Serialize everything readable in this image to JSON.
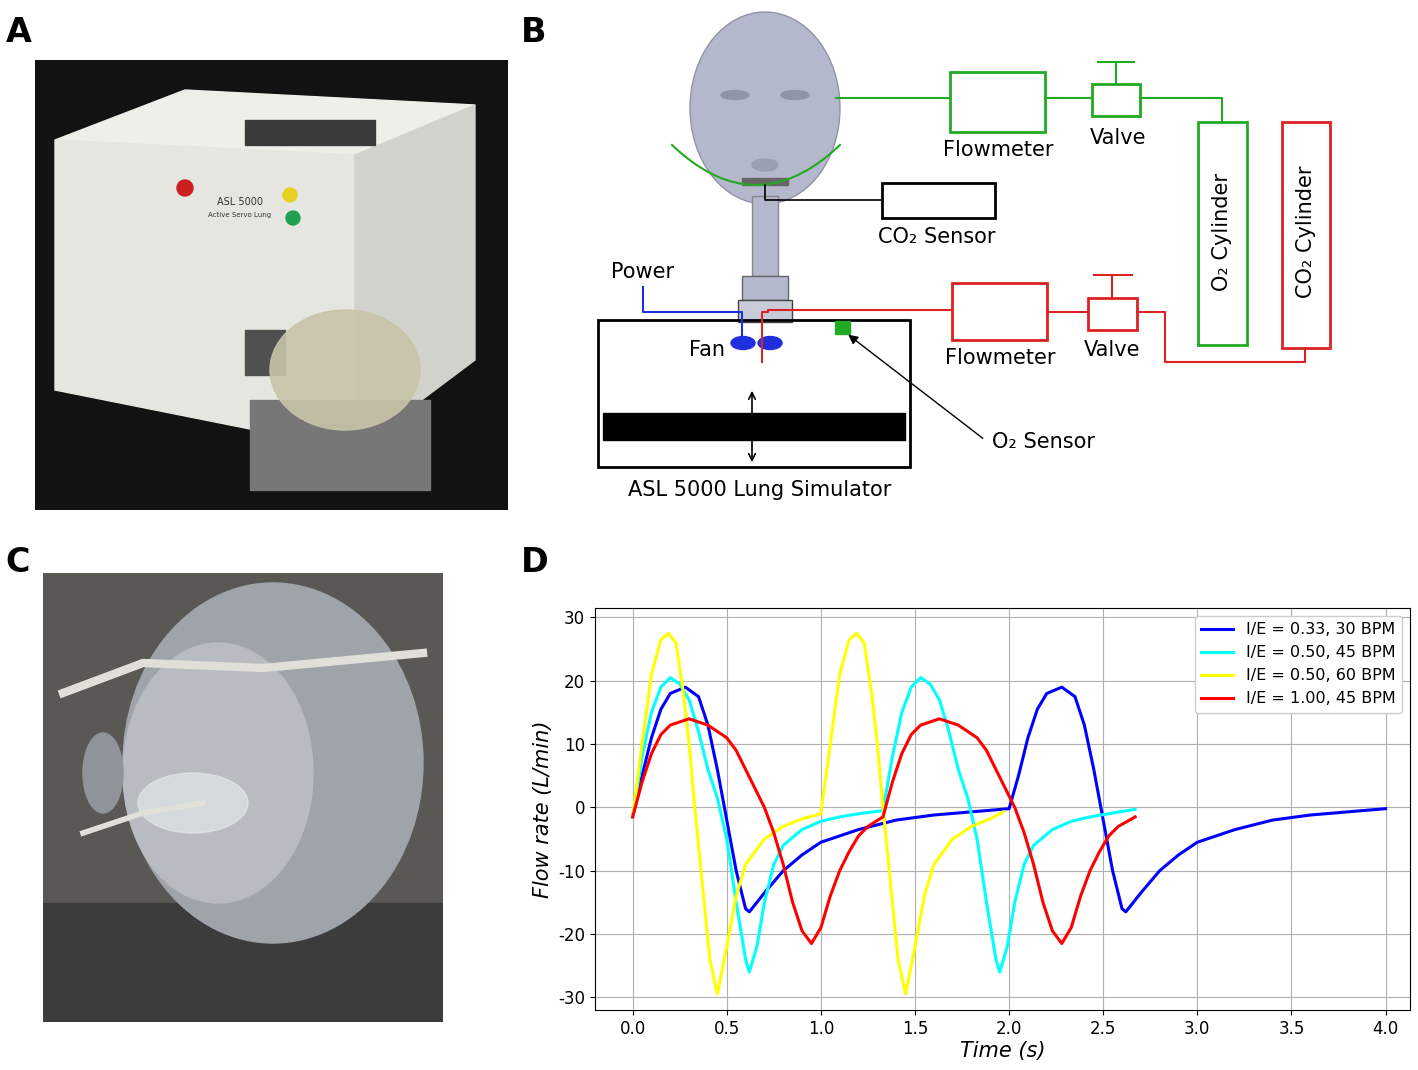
{
  "panel_labels": [
    "A",
    "B",
    "C",
    "D"
  ],
  "photo_A": {
    "device_text": [
      "ASL 5000",
      "Active Servo Lung"
    ]
  },
  "diagram": {
    "o2_branch": {
      "flowmeter": "Flowmeter",
      "valve": "Valve",
      "cylinder": "O₂ Cylinder"
    },
    "co2_branch": {
      "flowmeter": "Flowmeter",
      "valve": "Valve",
      "cylinder": "CO₂ Cylinder"
    },
    "co2_sensor": "CO₂ Sensor",
    "power": "Power",
    "fan": "Fan",
    "o2_sensor": "O₂ Sensor",
    "simulator": "ASL 5000 Lung Simulator"
  },
  "chart_data": {
    "type": "line",
    "xlabel": "Time (s)",
    "ylabel": "Flow rate (L/min)",
    "xlim": [
      -0.2,
      4.13
    ],
    "ylim": [
      -32,
      31.5
    ],
    "xticks": [
      {
        "value": 0,
        "label": "0.0"
      },
      0.5,
      {
        "value": 1,
        "label": "1.0"
      },
      1.5,
      {
        "value": 2,
        "label": "2.0"
      },
      2.5,
      {
        "value": 3,
        "label": "3.0"
      },
      3.5,
      {
        "value": 4,
        "label": "4.0"
      }
    ],
    "yticks": [
      -30,
      -20,
      -10,
      0,
      10,
      20,
      30
    ],
    "grid": true,
    "legend": "upper right",
    "series": [
      {
        "name": "I/E = 0.33, 30 BPM",
        "color": "#0000ff",
        "x": [
          0,
          0.05,
          0.1,
          0.15,
          0.2,
          0.28,
          0.35,
          0.4,
          0.45,
          0.5,
          0.55,
          0.6,
          0.62,
          0.7,
          0.8,
          0.9,
          1.0,
          1.2,
          1.4,
          1.6,
          1.8,
          2.0,
          2.05,
          2.1,
          2.15,
          2.2,
          2.28,
          2.35,
          2.4,
          2.45,
          2.5,
          2.55,
          2.6,
          2.62,
          2.7,
          2.8,
          2.9,
          3.0,
          3.2,
          3.4,
          3.6,
          3.8,
          4.0
        ],
        "values": [
          -1.5,
          5,
          11,
          15.5,
          18,
          19,
          17.5,
          13,
          6,
          -2,
          -10,
          -16,
          -16.5,
          -13.5,
          -10,
          -7.5,
          -5.5,
          -3.5,
          -2,
          -1.2,
          -0.7,
          -0.2,
          5,
          11,
          15.5,
          18,
          19,
          17.5,
          13,
          6,
          -2,
          -10,
          -16,
          -16.5,
          -13.5,
          -10,
          -7.5,
          -5.5,
          -3.5,
          -2,
          -1.2,
          -0.7,
          -0.2
        ]
      },
      {
        "name": "I/E = 0.50, 45 BPM",
        "color": "#00ffff",
        "x": [
          0,
          0.05,
          0.1,
          0.15,
          0.2,
          0.25,
          0.3,
          0.35,
          0.4,
          0.45,
          0.5,
          0.55,
          0.6,
          0.62,
          0.66,
          0.7,
          0.75,
          0.8,
          0.9,
          1.0,
          1.1,
          1.2,
          1.33,
          1.38,
          1.43,
          1.48,
          1.53,
          1.58,
          1.63,
          1.68,
          1.73,
          1.78,
          1.83,
          1.88,
          1.93,
          1.95,
          1.99,
          2.03,
          2.08,
          2.13,
          2.23,
          2.33,
          2.43,
          2.53,
          2.67
        ],
        "values": [
          -1.5,
          8,
          15,
          19,
          20.5,
          19.5,
          17,
          12,
          6,
          1.5,
          -5,
          -15,
          -24,
          -26,
          -22,
          -15,
          -9,
          -6,
          -3.5,
          -2.2,
          -1.5,
          -1,
          -0.5,
          8,
          15,
          19,
          20.5,
          19.5,
          17,
          12,
          6,
          1.5,
          -5,
          -15,
          -24,
          -26,
          -22,
          -15,
          -9,
          -6,
          -3.5,
          -2.2,
          -1.5,
          -1,
          -0.3
        ]
      },
      {
        "name": "I/E = 0.50, 60 BPM",
        "color": "#ffff00",
        "x": [
          0,
          0.05,
          0.1,
          0.15,
          0.19,
          0.23,
          0.27,
          0.3,
          0.33,
          0.37,
          0.41,
          0.45,
          0.5,
          0.55,
          0.6,
          0.7,
          0.8,
          0.9,
          1.0,
          1.05,
          1.1,
          1.15,
          1.19,
          1.23,
          1.27,
          1.3,
          1.33,
          1.37,
          1.41,
          1.45,
          1.5,
          1.55,
          1.6,
          1.7,
          1.8,
          1.9,
          1.97
        ],
        "values": [
          -1.5,
          10,
          21,
          26.5,
          27.5,
          26,
          18,
          10,
          0,
          -12,
          -24,
          -29.5,
          -22,
          -14,
          -9,
          -5,
          -3,
          -1.8,
          -1,
          10,
          21,
          26.5,
          27.5,
          26,
          18,
          10,
          0,
          -12,
          -24,
          -29.5,
          -22,
          -14,
          -9,
          -5,
          -3,
          -1.8,
          -0.7
        ]
      },
      {
        "name": "I/E = 1.00, 45 BPM",
        "color": "#ff0000",
        "x": [
          0,
          0.05,
          0.1,
          0.15,
          0.2,
          0.3,
          0.4,
          0.5,
          0.55,
          0.6,
          0.65,
          0.7,
          0.75,
          0.8,
          0.85,
          0.9,
          0.95,
          1.0,
          1.05,
          1.1,
          1.15,
          1.2,
          1.25,
          1.33,
          1.38,
          1.43,
          1.48,
          1.53,
          1.63,
          1.73,
          1.83,
          1.88,
          1.93,
          1.98,
          2.03,
          2.08,
          2.13,
          2.18,
          2.23,
          2.28,
          2.33,
          2.38,
          2.43,
          2.48,
          2.53,
          2.58,
          2.67
        ],
        "values": [
          -1.5,
          4,
          8.5,
          11.5,
          13,
          14,
          13,
          11,
          9,
          6,
          3,
          0,
          -4,
          -9,
          -15,
          -19.5,
          -21.5,
          -19,
          -14,
          -10,
          -7,
          -4.5,
          -3,
          -1.5,
          4,
          8.5,
          11.5,
          13,
          14,
          13,
          11,
          9,
          6,
          3,
          0,
          -4,
          -9,
          -15,
          -19.5,
          -21.5,
          -19,
          -14,
          -10,
          -7,
          -4.5,
          -3,
          -1.5
        ]
      }
    ]
  }
}
